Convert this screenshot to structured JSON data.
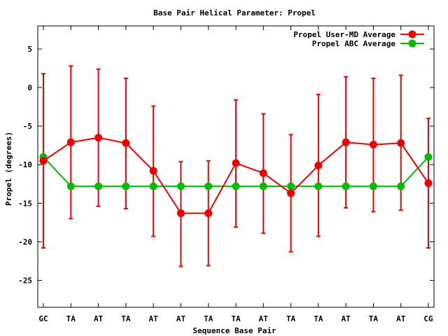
{
  "chart_data": {
    "type": "line",
    "title": "Base Pair Helical Parameter: Propel",
    "xlabel": "Sequence Base Pair",
    "ylabel": "Propel (degrees)",
    "categories": [
      "GC",
      "TA",
      "AT",
      "TA",
      "AT",
      "AT",
      "TA",
      "TA",
      "AT",
      "TA",
      "TA",
      "AT",
      "TA",
      "AT",
      "CG"
    ],
    "ylim": [
      -28.5,
      8
    ],
    "yticks": [
      5,
      0,
      -5,
      -10,
      -15,
      -20,
      -25
    ],
    "legend_position": "top-right",
    "grid": false,
    "series": [
      {
        "name": "Propel User-MD Average",
        "color": "#ee0000",
        "marker": "circle",
        "values": [
          -9.5,
          -7.1,
          -6.5,
          -7.2,
          -10.8,
          -16.3,
          -16.3,
          -9.8,
          -11.1,
          -13.7,
          -10.1,
          -7.1,
          -7.4,
          -7.2,
          -12.4
        ],
        "err_low": [
          -20.8,
          -17.0,
          -15.4,
          -15.7,
          -19.3,
          -23.2,
          -23.1,
          -18.1,
          -18.9,
          -21.3,
          -19.3,
          -15.6,
          -16.1,
          -15.9,
          -20.8
        ],
        "err_high": [
          1.8,
          2.8,
          2.4,
          1.2,
          -2.4,
          -9.6,
          -9.5,
          -1.6,
          -3.4,
          -6.1,
          -0.9,
          1.4,
          1.2,
          1.6,
          -4.0
        ]
      },
      {
        "name": "Propel ABC Average",
        "color": "#00bb00",
        "marker": "circle",
        "values": [
          -9.0,
          -12.8,
          -12.8,
          -12.8,
          -12.8,
          -12.8,
          -12.8,
          -12.8,
          -12.8,
          -12.8,
          -12.8,
          -12.8,
          -12.8,
          -12.8,
          -9.0
        ]
      }
    ]
  }
}
